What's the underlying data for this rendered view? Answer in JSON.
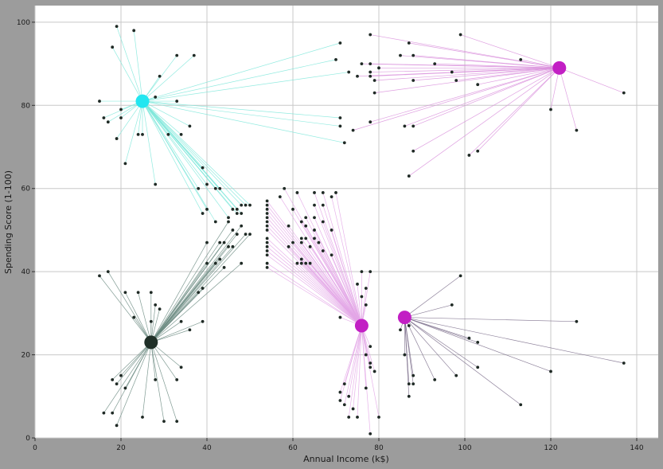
{
  "chart_data": {
    "type": "scatter",
    "title": "",
    "xlabel": "Annual Income (k$)",
    "ylabel": "Spending Score (1-100)",
    "xlim": [
      0,
      145
    ],
    "ylim": [
      0,
      104
    ],
    "xticks": [
      0,
      20,
      40,
      60,
      80,
      100,
      120,
      140
    ],
    "yticks": [
      0,
      20,
      40,
      60,
      80,
      100
    ],
    "grid": true,
    "colors": {
      "background": "#ffffff",
      "frame": "#9c9c9c",
      "grid": "#c8c8c8",
      "point": "#1f2a25"
    },
    "centroids": [
      {
        "x": 25,
        "y": 81,
        "color": "#22e6f0",
        "line_color": "#7fe8da"
      },
      {
        "x": 122,
        "y": 89,
        "color": "#c21fc4",
        "line_color": "#d98fdc"
      },
      {
        "x": 27,
        "y": 23,
        "color": "#1f2f27",
        "line_color": "#6a8a80"
      },
      {
        "x": 76,
        "y": 27,
        "color": "#c21fc4",
        "line_color": "#e3a6e6"
      },
      {
        "x": 86,
        "y": 29,
        "color": "#c21fc4",
        "line_color": "#7a6c8a"
      }
    ],
    "series": [
      {
        "cluster": 0,
        "points": [
          [
            19,
            99
          ],
          [
            23,
            98
          ],
          [
            18,
            94
          ],
          [
            33,
            92
          ],
          [
            37,
            92
          ],
          [
            29,
            87
          ],
          [
            15,
            81
          ],
          [
            28,
            82
          ],
          [
            20,
            79
          ],
          [
            33,
            81
          ],
          [
            16,
            77
          ],
          [
            20,
            77
          ],
          [
            17,
            76
          ],
          [
            36,
            75
          ],
          [
            19,
            72
          ],
          [
            24,
            73
          ],
          [
            25,
            73
          ],
          [
            31,
            73
          ],
          [
            34,
            73
          ],
          [
            21,
            66
          ],
          [
            39,
            65
          ],
          [
            28,
            61
          ],
          [
            40,
            61
          ],
          [
            38,
            60
          ],
          [
            42,
            60
          ],
          [
            43,
            60
          ],
          [
            46,
            55
          ],
          [
            40,
            55
          ],
          [
            48,
            56
          ],
          [
            49,
            56
          ],
          [
            50,
            56
          ],
          [
            42,
            52
          ],
          [
            45,
            53
          ],
          [
            47,
            54
          ],
          [
            48,
            54
          ],
          [
            39,
            54
          ],
          [
            47,
            55
          ],
          [
            71,
            95
          ],
          [
            70,
            91
          ],
          [
            73,
            88
          ],
          [
            71,
            77
          ],
          [
            71,
            75
          ],
          [
            72,
            71
          ]
        ]
      },
      {
        "cluster": 1,
        "points": [
          [
            78,
            97
          ],
          [
            87,
            95
          ],
          [
            99,
            97
          ],
          [
            88,
            92
          ],
          [
            113,
            91
          ],
          [
            76,
            90
          ],
          [
            85,
            92
          ],
          [
            80,
            89
          ],
          [
            79,
            86
          ],
          [
            78,
            87
          ],
          [
            75,
            87
          ],
          [
            93,
            90
          ],
          [
            98,
            86
          ],
          [
            97,
            88
          ],
          [
            78,
            90
          ],
          [
            78,
            88
          ],
          [
            79,
            83
          ],
          [
            88,
            86
          ],
          [
            103,
            85
          ],
          [
            137,
            83
          ],
          [
            78,
            76
          ],
          [
            88,
            75
          ],
          [
            86,
            75
          ],
          [
            126,
            74
          ],
          [
            74,
            74
          ],
          [
            101,
            68
          ],
          [
            103,
            69
          ],
          [
            88,
            69
          ],
          [
            87,
            63
          ],
          [
            120,
            79
          ]
        ]
      },
      {
        "cluster": 2,
        "points": [
          [
            15,
            39
          ],
          [
            17,
            40
          ],
          [
            21,
            35
          ],
          [
            24,
            35
          ],
          [
            27,
            35
          ],
          [
            23,
            29
          ],
          [
            28,
            32
          ],
          [
            29,
            31
          ],
          [
            27,
            28
          ],
          [
            34,
            28
          ],
          [
            36,
            26
          ],
          [
            34,
            17
          ],
          [
            33,
            14
          ],
          [
            28,
            14
          ],
          [
            20,
            15
          ],
          [
            19,
            13
          ],
          [
            18,
            14
          ],
          [
            21,
            12
          ],
          [
            16,
            6
          ],
          [
            18,
            6
          ],
          [
            19,
            3
          ],
          [
            25,
            5
          ],
          [
            30,
            4
          ],
          [
            33,
            4
          ],
          [
            39,
            28
          ],
          [
            39,
            36
          ],
          [
            38,
            35
          ],
          [
            40,
            42
          ],
          [
            40,
            47
          ],
          [
            42,
            42
          ],
          [
            43,
            43
          ],
          [
            44,
            41
          ],
          [
            45,
            46
          ],
          [
            46,
            46
          ],
          [
            47,
            49
          ],
          [
            48,
            51
          ],
          [
            49,
            49
          ],
          [
            50,
            49
          ],
          [
            46,
            50
          ],
          [
            45,
            52
          ],
          [
            44,
            47
          ],
          [
            48,
            42
          ],
          [
            43,
            47
          ]
        ]
      },
      {
        "cluster": 3,
        "points": [
          [
            54,
            57
          ],
          [
            54,
            56
          ],
          [
            54,
            55
          ],
          [
            54,
            54
          ],
          [
            54,
            53
          ],
          [
            54,
            52
          ],
          [
            54,
            51
          ],
          [
            54,
            50
          ],
          [
            54,
            48
          ],
          [
            54,
            47
          ],
          [
            54,
            46
          ],
          [
            54,
            45
          ],
          [
            54,
            44
          ],
          [
            54,
            42
          ],
          [
            54,
            41
          ],
          [
            57,
            58
          ],
          [
            58,
            60
          ],
          [
            60,
            55
          ],
          [
            59,
            51
          ],
          [
            59,
            46
          ],
          [
            61,
            59
          ],
          [
            62,
            52
          ],
          [
            63,
            53
          ],
          [
            63,
            51
          ],
          [
            62,
            48
          ],
          [
            63,
            48
          ],
          [
            62,
            47
          ],
          [
            64,
            46
          ],
          [
            62,
            43
          ],
          [
            62,
            42
          ],
          [
            63,
            42
          ],
          [
            64,
            42
          ],
          [
            65,
            59
          ],
          [
            65,
            56
          ],
          [
            65,
            53
          ],
          [
            65,
            50
          ],
          [
            65,
            48
          ],
          [
            66,
            47
          ],
          [
            67,
            59
          ],
          [
            67,
            56
          ],
          [
            67,
            52
          ],
          [
            67,
            45
          ],
          [
            69,
            58
          ],
          [
            69,
            50
          ],
          [
            69,
            44
          ],
          [
            70,
            59
          ],
          [
            60,
            47
          ],
          [
            61,
            42
          ],
          [
            71,
            29
          ],
          [
            71,
            11
          ],
          [
            71,
            9
          ],
          [
            72,
            13
          ],
          [
            72,
            8
          ],
          [
            73,
            10
          ],
          [
            73,
            5
          ],
          [
            74,
            7
          ],
          [
            75,
            5
          ],
          [
            75,
            37
          ],
          [
            76,
            40
          ],
          [
            76,
            34
          ],
          [
            77,
            36
          ],
          [
            77,
            12
          ],
          [
            77,
            20
          ],
          [
            78,
            18
          ],
          [
            78,
            17
          ],
          [
            78,
            22
          ],
          [
            78,
            1
          ],
          [
            79,
            16
          ],
          [
            80,
            5
          ],
          [
            78,
            40
          ],
          [
            77,
            32
          ]
        ]
      },
      {
        "cluster": 4,
        "points": [
          [
            87,
            27
          ],
          [
            87,
            13
          ],
          [
            87,
            10
          ],
          [
            88,
            13
          ],
          [
            88,
            15
          ],
          [
            85,
            26
          ],
          [
            86,
            20
          ],
          [
            93,
            14
          ],
          [
            97,
            32
          ],
          [
            98,
            15
          ],
          [
            99,
            39
          ],
          [
            101,
            24
          ],
          [
            103,
            23
          ],
          [
            103,
            17
          ],
          [
            113,
            8
          ],
          [
            120,
            16
          ],
          [
            126,
            28
          ],
          [
            137,
            18
          ]
        ]
      }
    ]
  }
}
